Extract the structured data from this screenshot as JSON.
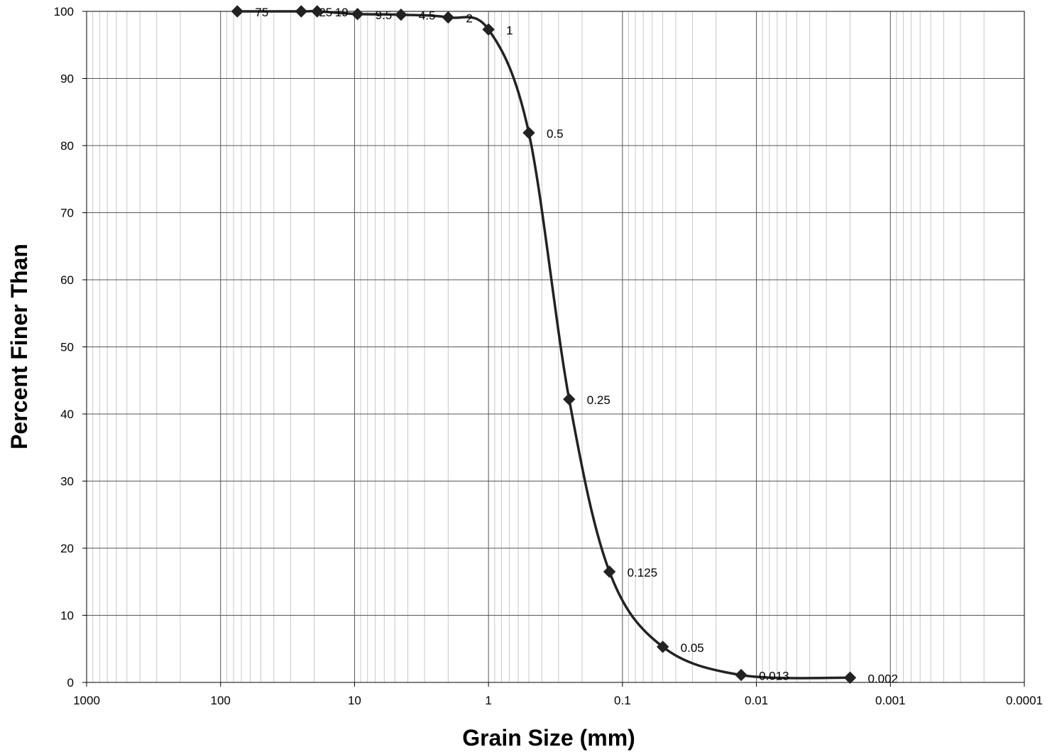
{
  "chart_data": {
    "type": "scatter",
    "title": "",
    "xlabel": "Grain Size (mm)",
    "ylabel": "Percent Finer Than",
    "x_scale": "log",
    "x_reversed": true,
    "xlim": [
      1000,
      0.0001
    ],
    "ylim": [
      0,
      100
    ],
    "grid": true,
    "x_ticks": [
      1000,
      100,
      10,
      1,
      0.1,
      0.01,
      0.001,
      0.0001
    ],
    "x_tick_labels": [
      "1000",
      "100",
      "10",
      "1",
      "0.1",
      "0.01",
      "0.001",
      "0.0001"
    ],
    "y_ticks": [
      0,
      10,
      20,
      30,
      40,
      50,
      60,
      70,
      80,
      90,
      100
    ],
    "y_tick_labels": [
      "0",
      "10",
      "20",
      "30",
      "40",
      "50",
      "60",
      "70",
      "80",
      "90",
      "100"
    ],
    "marker": "diamond",
    "line_color": "#222222",
    "series": [
      {
        "points": [
          {
            "x": 75,
            "y": 100,
            "label": "75"
          },
          {
            "x": 25,
            "y": 100,
            "label": "25"
          },
          {
            "x": 19,
            "y": 100,
            "label": "19"
          },
          {
            "x": 9.5,
            "y": 99.6,
            "label": "9.5"
          },
          {
            "x": 4.5,
            "y": 99.5,
            "label": "4.5"
          },
          {
            "x": 2,
            "y": 99.1,
            "label": "2"
          },
          {
            "x": 1,
            "y": 97.3,
            "label": "1"
          },
          {
            "x": 0.5,
            "y": 81.9,
            "label": "0.5"
          },
          {
            "x": 0.25,
            "y": 42.2,
            "label": "0.25"
          },
          {
            "x": 0.125,
            "y": 16.5,
            "label": "0.125"
          },
          {
            "x": 0.05,
            "y": 5.3,
            "label": "0.05"
          },
          {
            "x": 0.013,
            "y": 1.1,
            "label": "0.013"
          },
          {
            "x": 0.002,
            "y": 0.7,
            "label": "0.002"
          }
        ]
      }
    ]
  }
}
